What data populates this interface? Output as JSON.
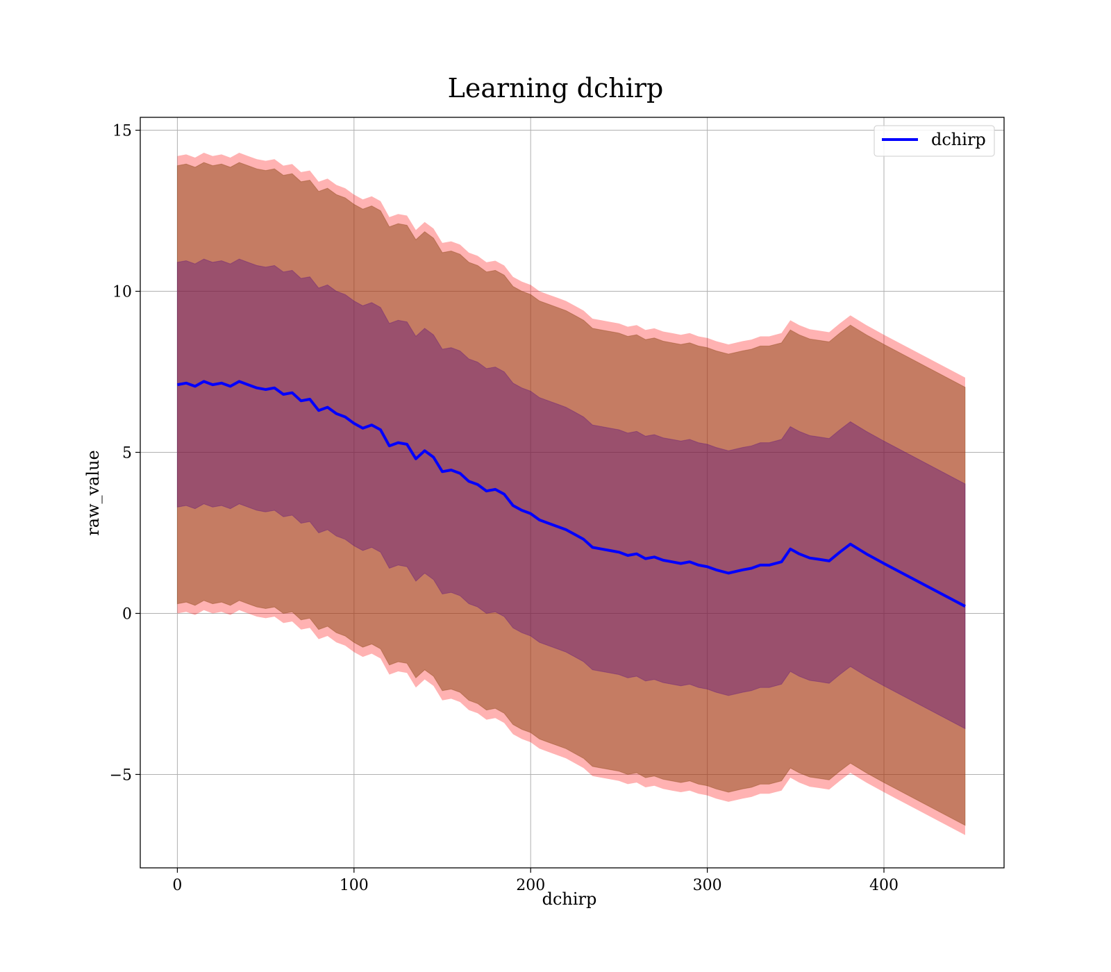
{
  "chart_data": {
    "type": "line",
    "title": "Learning dchirp",
    "xlabel": "dchirp",
    "ylabel": "raw_value",
    "xlim": [
      -21,
      468
    ],
    "ylim": [
      -7.9,
      15.4
    ],
    "xticks": [
      0,
      100,
      200,
      300,
      400
    ],
    "yticks": [
      -5,
      0,
      5,
      10,
      15
    ],
    "xtick_labels": [
      "0",
      "100",
      "200",
      "300",
      "400"
    ],
    "ytick_labels": [
      "−5",
      "0",
      "5",
      "10",
      "15"
    ],
    "grid": true,
    "legend_position": "top-right",
    "colors": {
      "mean_line": "#0000ff",
      "outer_band": "#ff0000",
      "middle_band": "#8b4513",
      "inner_band": "#4b0082",
      "grid": "#b0b0b0"
    },
    "legend": [
      {
        "label": "dchirp",
        "color": "#0000ff"
      }
    ],
    "series": [
      {
        "name": "dchirp",
        "x": [
          0,
          5,
          10,
          15,
          20,
          25,
          30,
          35,
          40,
          45,
          50,
          55,
          60,
          65,
          70,
          75,
          80,
          85,
          90,
          95,
          100,
          105,
          110,
          115,
          120,
          125,
          130,
          135,
          140,
          145,
          150,
          155,
          160,
          165,
          170,
          175,
          180,
          185,
          190,
          195,
          200,
          205,
          210,
          215,
          220,
          225,
          230,
          235,
          240,
          245,
          250,
          255,
          260,
          265,
          270,
          275,
          280,
          285,
          290,
          295,
          300,
          305,
          312,
          320,
          325,
          330,
          335,
          342,
          347,
          352,
          358,
          363,
          369,
          375,
          381,
          390,
          400,
          446
        ],
        "mean": [
          7.1,
          7.15,
          7.05,
          7.2,
          7.1,
          7.15,
          7.05,
          7.2,
          7.1,
          7.0,
          6.95,
          7.0,
          6.8,
          6.85,
          6.6,
          6.65,
          6.3,
          6.4,
          6.2,
          6.1,
          5.9,
          5.75,
          5.85,
          5.7,
          5.2,
          5.3,
          5.25,
          4.8,
          5.05,
          4.85,
          4.4,
          4.45,
          4.35,
          4.1,
          4.0,
          3.8,
          3.85,
          3.7,
          3.35,
          3.2,
          3.1,
          2.9,
          2.8,
          2.7,
          2.6,
          2.45,
          2.3,
          2.05,
          2.0,
          1.95,
          1.9,
          1.8,
          1.85,
          1.7,
          1.75,
          1.65,
          1.6,
          1.55,
          1.6,
          1.5,
          1.45,
          1.35,
          1.25,
          1.35,
          1.4,
          1.5,
          1.5,
          1.6,
          2.0,
          1.85,
          1.72,
          1.68,
          1.63,
          1.9,
          2.15,
          1.85,
          1.55,
          0.22
        ],
        "outer_halfwidth": 7.1,
        "middle_halfwidth": 6.8,
        "inner_halfwidth": 3.8
      }
    ]
  }
}
